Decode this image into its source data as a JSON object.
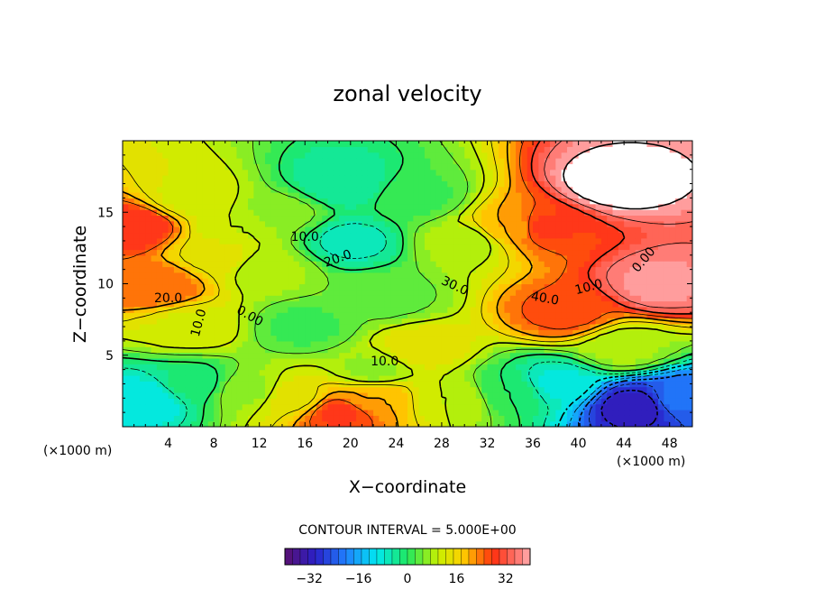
{
  "chart_data": {
    "type": "heatmap",
    "title": "zonal velocity",
    "xlabel": "X−coordinate",
    "ylabel": "Z−coordinate",
    "x_unit_left": "(×1000 m)",
    "x_unit_right": "(×1000 m)",
    "xlim": [
      0,
      50
    ],
    "ylim": [
      0,
      20
    ],
    "xticks": [
      "4",
      "8",
      "12",
      "16",
      "20",
      "24",
      "28",
      "32",
      "36",
      "40",
      "44",
      "48"
    ],
    "yticks": [
      "5",
      "10",
      "15"
    ],
    "contour_interval_text": "CONTOUR INTERVAL = 5.000E+00",
    "colorbar": {
      "range": [
        -40,
        40
      ],
      "ticks": [
        "−32",
        "−16",
        "0",
        "16",
        "32"
      ]
    },
    "contour_labels": [
      "20.0",
      "10.0",
      "0.00",
      "10.0",
      "10.0",
      "20.0",
      "30.0",
      "40.0",
      "10.0",
      "0.00"
    ],
    "field_samples": [
      {
        "x": 1,
        "z": 14,
        "u": 30
      },
      {
        "x": 3,
        "z": 10,
        "u": 25
      },
      {
        "x": 6,
        "z": 16,
        "u": 12
      },
      {
        "x": 10,
        "z": 14,
        "u": 10
      },
      {
        "x": 14,
        "z": 15,
        "u": 6
      },
      {
        "x": 20,
        "z": 13,
        "u": -6
      },
      {
        "x": 19,
        "z": 17,
        "u": -5
      },
      {
        "x": 26,
        "z": 16,
        "u": 2
      },
      {
        "x": 30,
        "z": 13,
        "u": 8
      },
      {
        "x": 34,
        "z": 14,
        "u": 20
      },
      {
        "x": 37,
        "z": 14,
        "u": 28
      },
      {
        "x": 43,
        "z": 17,
        "u": 42
      },
      {
        "x": 47,
        "z": 10,
        "u": 38
      },
      {
        "x": 39,
        "z": 8,
        "u": 26
      },
      {
        "x": 6,
        "z": 7,
        "u": 12
      },
      {
        "x": 16,
        "z": 7,
        "u": 2
      },
      {
        "x": 26,
        "z": 5.5,
        "u": 14
      },
      {
        "x": 22,
        "z": 4,
        "u": 7
      },
      {
        "x": 44,
        "z": 5.5,
        "u": 8
      },
      {
        "x": 2,
        "z": 2,
        "u": -10
      },
      {
        "x": 6,
        "z": 3,
        "u": -2
      },
      {
        "x": 11,
        "z": 2.5,
        "u": 7
      },
      {
        "x": 15,
        "z": 2,
        "u": 14
      },
      {
        "x": 19,
        "z": 1,
        "u": 28
      },
      {
        "x": 22,
        "z": 2,
        "u": 20
      },
      {
        "x": 29,
        "z": 2,
        "u": 10
      },
      {
        "x": 34,
        "z": 2.5,
        "u": 0
      },
      {
        "x": 38,
        "z": 3,
        "u": -8
      },
      {
        "x": 45,
        "z": 1.5,
        "u": -32
      },
      {
        "x": 49,
        "z": 2,
        "u": -22
      },
      {
        "x": 13,
        "z": 11,
        "u": 8
      },
      {
        "x": 23,
        "z": 9,
        "u": 4
      },
      {
        "x": 8,
        "z": 12,
        "u": 14
      }
    ]
  }
}
